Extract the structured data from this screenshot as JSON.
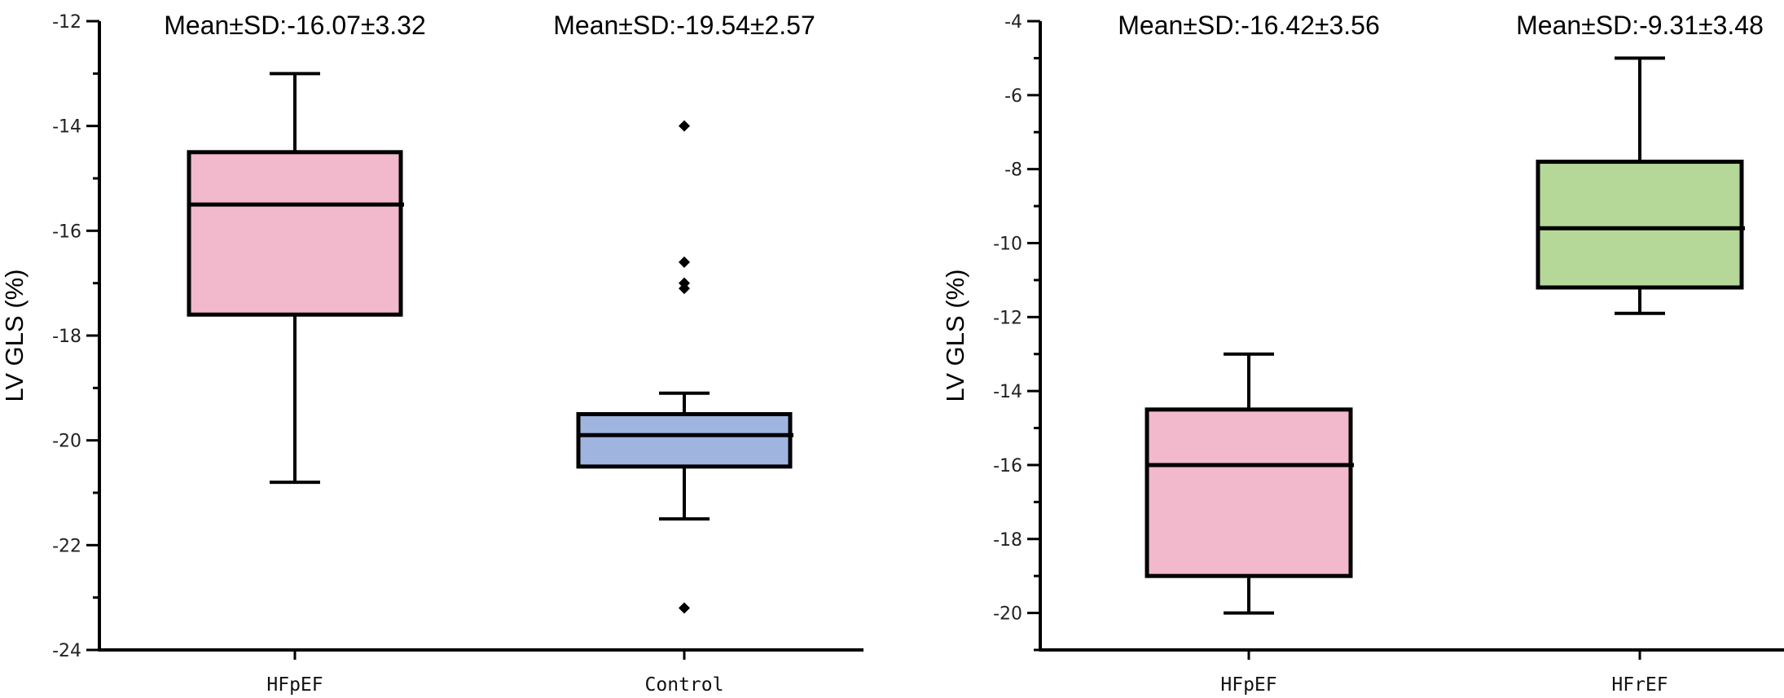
{
  "chart_data": [
    {
      "type": "box",
      "ylabel": "LV  GLS (%)",
      "xlabel": "",
      "ylim": [
        -24,
        -12
      ],
      "yticks": [
        -12,
        -14,
        -16,
        -18,
        -20,
        -22,
        -24
      ],
      "grid": false,
      "categories": [
        "HFpEF",
        "Control"
      ],
      "series": [
        {
          "category": "HFpEF",
          "color": "#F2B8CB",
          "whisker_low": -20.8,
          "q1": -17.6,
          "median": -15.5,
          "q3": -14.5,
          "whisker_high": -13.0,
          "outliers": [],
          "annotation": "Mean±SD:-16.07±3.32"
        },
        {
          "category": "Control",
          "color": "#9FB4DF",
          "whisker_low": -21.5,
          "q1": -20.5,
          "median": -19.9,
          "q3": -19.5,
          "whisker_high": -19.1,
          "outliers": [
            -14.0,
            -16.6,
            -17.0,
            -17.1,
            -23.2
          ],
          "annotation": "Mean±SD:-19.54±2.57"
        }
      ]
    },
    {
      "type": "box",
      "ylabel": "LV  GLS (%)",
      "xlabel": "",
      "ylim": [
        -21,
        -4
      ],
      "yticks": [
        -4,
        -6,
        -8,
        -10,
        -12,
        -14,
        -16,
        -18,
        -20
      ],
      "grid": false,
      "categories": [
        "HFpEF",
        "HFrEF"
      ],
      "series": [
        {
          "category": "HFpEF",
          "color": "#F2B8CB",
          "whisker_low": -20.0,
          "q1": -19.0,
          "median": -16.0,
          "q3": -14.5,
          "whisker_high": -13.0,
          "outliers": [],
          "annotation": "Mean±SD:-16.42±3.56"
        },
        {
          "category": "HFrEF",
          "color": "#B5D899",
          "whisker_low": -11.9,
          "q1": -11.2,
          "median": -9.6,
          "q3": -7.8,
          "whisker_high": -5.0,
          "outliers": [],
          "annotation": "Mean±SD:-9.31±3.48"
        }
      ]
    }
  ]
}
